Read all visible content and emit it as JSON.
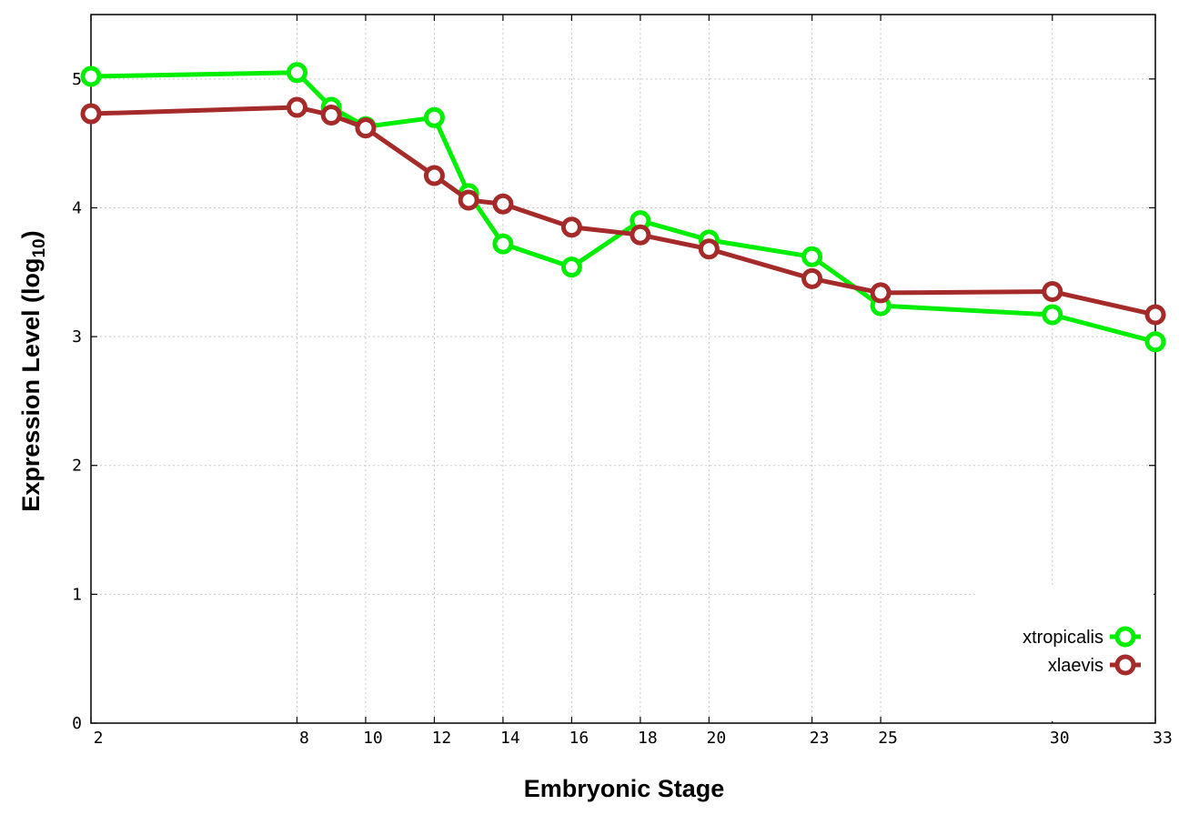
{
  "chart_data": {
    "type": "line",
    "xlabel": "Embryonic Stage",
    "ylabel_main": "Expression Level (log",
    "ylabel_sub": "10",
    "ylabel_close": ")",
    "x_ticks": [
      2,
      8,
      10,
      12,
      14,
      16,
      18,
      20,
      23,
      25,
      30,
      33
    ],
    "x_tick_labels": [
      "2",
      "8",
      "10",
      "12",
      "14",
      "16",
      "18",
      "20",
      "23",
      "25",
      "30",
      "33"
    ],
    "y_ticks": [
      0,
      1,
      2,
      3,
      4,
      5
    ],
    "y_tick_labels": [
      "0",
      "1",
      "2",
      "3",
      "4",
      "5"
    ],
    "xlim": [
      2,
      33
    ],
    "ylim": [
      0,
      5.5
    ],
    "grid": true,
    "legend_position": "bottom-right",
    "series": [
      {
        "name": "xtropicalis",
        "color": "#00ee00",
        "x": [
          2,
          8,
          9,
          10,
          12,
          13,
          14,
          16,
          18,
          20,
          23,
          25,
          30,
          33
        ],
        "y": [
          5.02,
          5.05,
          4.78,
          4.63,
          4.7,
          4.11,
          3.72,
          3.54,
          3.9,
          3.75,
          3.62,
          3.24,
          3.17,
          2.96
        ]
      },
      {
        "name": "xlaevis",
        "color": "#a52a2a",
        "x": [
          2,
          8,
          9,
          10,
          12,
          13,
          14,
          16,
          18,
          20,
          23,
          25,
          30,
          33
        ],
        "y": [
          4.73,
          4.78,
          4.72,
          4.62,
          4.25,
          4.06,
          4.03,
          3.85,
          3.79,
          3.68,
          3.45,
          3.34,
          3.35,
          3.17
        ]
      }
    ]
  }
}
